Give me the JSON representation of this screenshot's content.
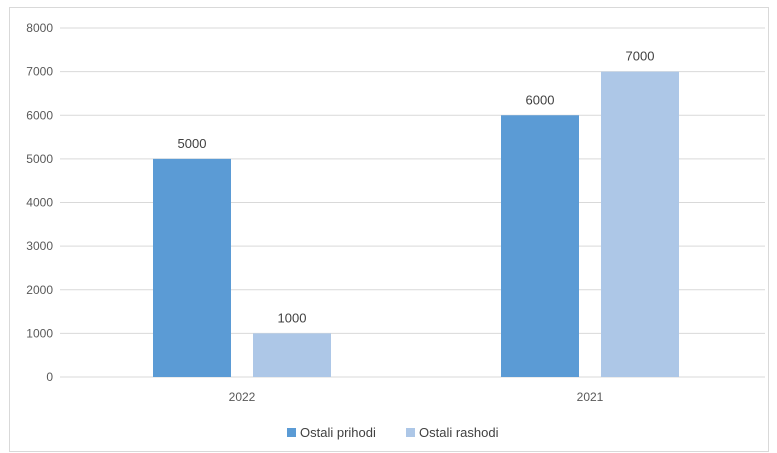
{
  "chart_data": {
    "type": "bar",
    "categories": [
      "2022",
      "2021"
    ],
    "series": [
      {
        "name": "Ostali prihodi",
        "values": [
          5000,
          6000
        ],
        "color": "#5b9bd5"
      },
      {
        "name": "Ostali rashodi",
        "values": [
          1000,
          7000
        ],
        "color": "#adc7e7"
      }
    ],
    "ylim": [
      0,
      8000
    ],
    "yticks": [
      "0",
      "1000",
      "2000",
      "3000",
      "4000",
      "5000",
      "6000",
      "7000",
      "8000"
    ],
    "data_labels": [
      "5000",
      "1000",
      "6000",
      "7000"
    ],
    "grid": true,
    "legend_position": "bottom",
    "gridline_color": "#d9d9d9"
  }
}
